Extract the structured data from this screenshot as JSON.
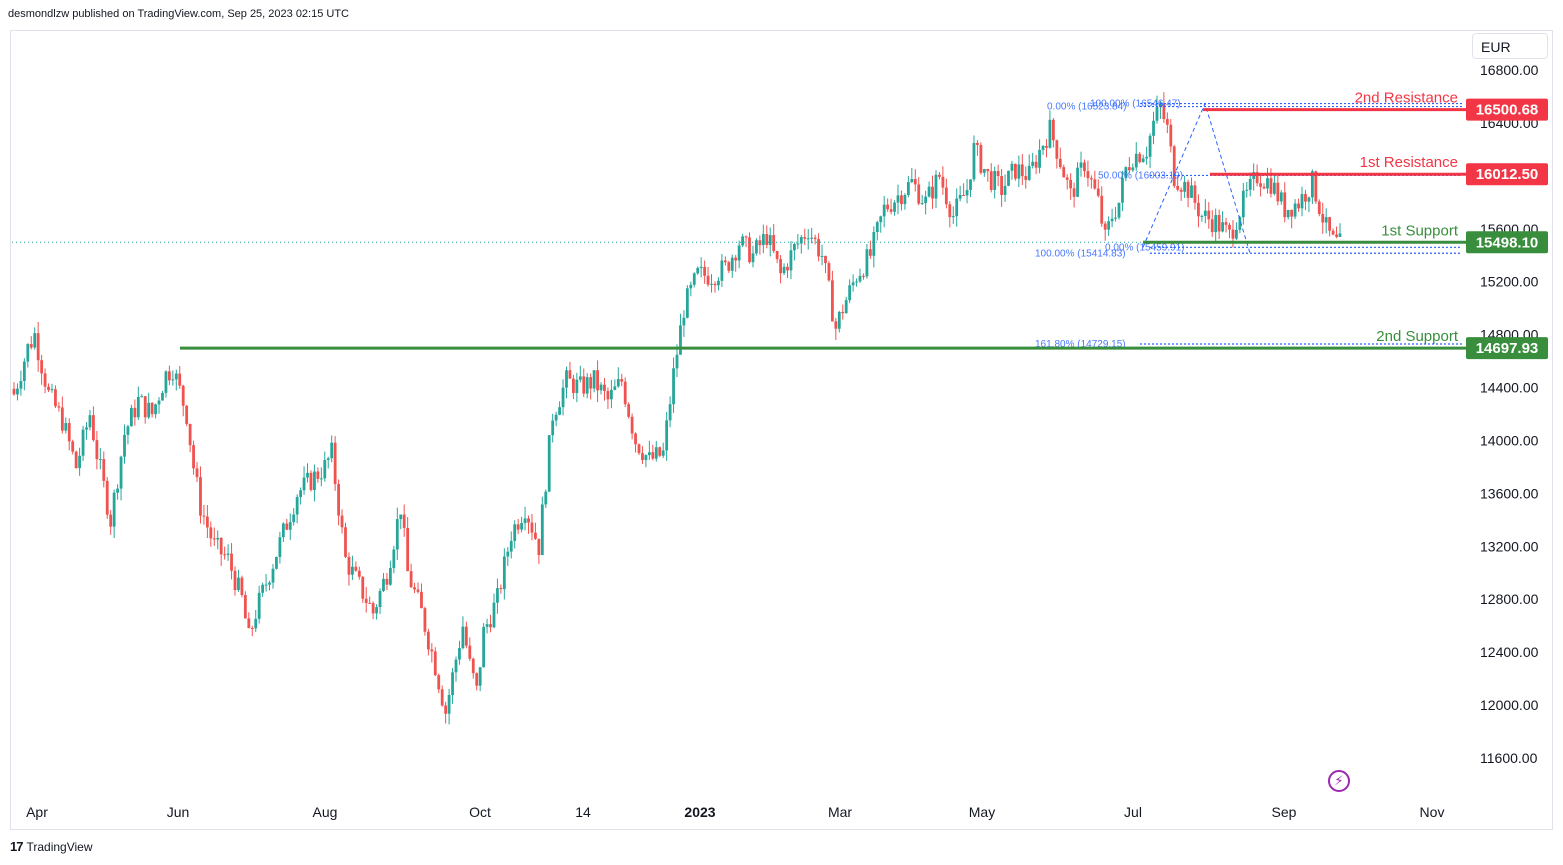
{
  "header": {
    "text": "desmondlzw published on TradingView.com, Sep 25, 2023 02:15 UTC"
  },
  "footer": {
    "brand_mark": "17",
    "brand_text": "TradingView"
  },
  "currency_button": "EUR",
  "colors": {
    "up": "#26a69a",
    "down": "#ef5350",
    "resistance": "#f23645",
    "support": "#388e3c",
    "fib": "#2962ff"
  },
  "chart_data": {
    "type": "candlestick",
    "title": "",
    "xlabel": "",
    "ylabel": "",
    "ylim": [
      11200,
      16950
    ],
    "grid": false,
    "y_ticks": [
      "16800.00",
      "16400.00",
      "16000.00",
      "15600.00",
      "15200.00",
      "14800.00",
      "14400.00",
      "14000.00",
      "13600.00",
      "13200.00",
      "12800.00",
      "12400.00",
      "12000.00",
      "11600.00"
    ],
    "y_tick_values": [
      16800,
      16400,
      16000,
      15600,
      15200,
      14800,
      14400,
      14000,
      13600,
      13200,
      12800,
      12400,
      12000,
      11600
    ],
    "x_ticks": [
      {
        "label": "Apr",
        "bold": false
      },
      {
        "label": "Jun",
        "bold": false
      },
      {
        "label": "Aug",
        "bold": false
      },
      {
        "label": "Oct",
        "bold": false
      },
      {
        "label": "14",
        "bold": false
      },
      {
        "label": "2023",
        "bold": true
      },
      {
        "label": "Mar",
        "bold": false
      },
      {
        "label": "May",
        "bold": false
      },
      {
        "label": "Jul",
        "bold": false
      },
      {
        "label": "Sep",
        "bold": false
      },
      {
        "label": "Nov",
        "bold": false
      }
    ],
    "close_anchors": [
      [
        0,
        14350
      ],
      [
        4,
        14700
      ],
      [
        6,
        14800
      ],
      [
        10,
        14350
      ],
      [
        14,
        14150
      ],
      [
        18,
        13800
      ],
      [
        22,
        14200
      ],
      [
        24,
        13900
      ],
      [
        28,
        13400
      ],
      [
        32,
        14050
      ],
      [
        36,
        14300
      ],
      [
        40,
        14200
      ],
      [
        44,
        14500
      ],
      [
        46,
        14550
      ],
      [
        50,
        14200
      ],
      [
        52,
        13800
      ],
      [
        54,
        13500
      ],
      [
        58,
        13200
      ],
      [
        62,
        13100
      ],
      [
        66,
        12800
      ],
      [
        68,
        12500
      ],
      [
        70,
        12700
      ],
      [
        74,
        13000
      ],
      [
        78,
        13300
      ],
      [
        82,
        13600
      ],
      [
        86,
        13700
      ],
      [
        90,
        13800
      ],
      [
        92,
        13900
      ],
      [
        94,
        13500
      ],
      [
        96,
        13100
      ],
      [
        100,
        12900
      ],
      [
        104,
        12700
      ],
      [
        108,
        13000
      ],
      [
        112,
        13500
      ],
      [
        114,
        13000
      ],
      [
        118,
        12700
      ],
      [
        122,
        12300
      ],
      [
        125,
        11950
      ],
      [
        128,
        12350
      ],
      [
        130,
        12600
      ],
      [
        132,
        12300
      ],
      [
        134,
        12100
      ],
      [
        136,
        12550
      ],
      [
        140,
        12800
      ],
      [
        144,
        13300
      ],
      [
        148,
        13500
      ],
      [
        152,
        13200
      ],
      [
        156,
        14200
      ],
      [
        160,
        14450
      ],
      [
        164,
        14400
      ],
      [
        168,
        14450
      ],
      [
        172,
        14300
      ],
      [
        176,
        14450
      ],
      [
        180,
        14000
      ],
      [
        184,
        13850
      ],
      [
        188,
        13900
      ],
      [
        191,
        14500
      ],
      [
        194,
        15000
      ],
      [
        198,
        15250
      ],
      [
        202,
        15250
      ],
      [
        206,
        15300
      ],
      [
        210,
        15500
      ],
      [
        214,
        15400
      ],
      [
        218,
        15550
      ],
      [
        222,
        15250
      ],
      [
        226,
        15450
      ],
      [
        230,
        15600
      ],
      [
        234,
        15400
      ],
      [
        238,
        14850
      ],
      [
        240,
        15000
      ],
      [
        244,
        15250
      ],
      [
        248,
        15400
      ],
      [
        252,
        15750
      ],
      [
        256,
        15850
      ],
      [
        260,
        15950
      ],
      [
        264,
        15800
      ],
      [
        268,
        16000
      ],
      [
        272,
        15700
      ],
      [
        276,
        15900
      ],
      [
        278,
        16200
      ],
      [
        282,
        16000
      ],
      [
        286,
        15900
      ],
      [
        290,
        16050
      ],
      [
        294,
        16000
      ],
      [
        298,
        16250
      ],
      [
        300,
        16350
      ],
      [
        302,
        16200
      ],
      [
        306,
        15850
      ],
      [
        310,
        16100
      ],
      [
        314,
        15800
      ],
      [
        316,
        15520
      ],
      [
        318,
        15700
      ],
      [
        320,
        15800
      ],
      [
        322,
        16050
      ],
      [
        324,
        16150
      ],
      [
        328,
        16200
      ],
      [
        330,
        16400
      ],
      [
        332,
        16520
      ],
      [
        334,
        16350
      ],
      [
        336,
        16000
      ],
      [
        340,
        15900
      ],
      [
        344,
        15700
      ],
      [
        348,
        15650
      ],
      [
        352,
        15550
      ],
      [
        356,
        15800
      ],
      [
        360,
        16000
      ],
      [
        364,
        15950
      ],
      [
        368,
        15750
      ],
      [
        372,
        15800
      ],
      [
        376,
        15950
      ],
      [
        380,
        15600
      ],
      [
        382,
        15500
      ],
      [
        384,
        15480
      ]
    ],
    "levels": [
      {
        "label": "2nd Resistance",
        "value": 16500.68,
        "value_text": "16500.68",
        "kind": "resistance"
      },
      {
        "label": "1st Resistance",
        "value": 16012.5,
        "value_text": "16012.50",
        "kind": "resistance"
      },
      {
        "label": "1st Support",
        "value": 15498.1,
        "value_text": "15498.10",
        "kind": "support"
      },
      {
        "label": "2nd Support",
        "value": 14697.93,
        "value_text": "14697.93",
        "kind": "support"
      }
    ],
    "current_price": 15498.1,
    "fib_labels": [
      {
        "text": "0.00% (16523.84)",
        "value": 16523.84
      },
      {
        "text": "100.00% (16546.47)",
        "value": 16546.47
      },
      {
        "text": "50.00% (16003.19)",
        "value": 16003.19
      },
      {
        "text": "0.00% (15459.91)",
        "value": 15459.91
      },
      {
        "text": "100.00% (15414.83)",
        "value": 15414.83
      },
      {
        "text": "161.80% (14729.15)",
        "value": 14729.15
      }
    ]
  }
}
